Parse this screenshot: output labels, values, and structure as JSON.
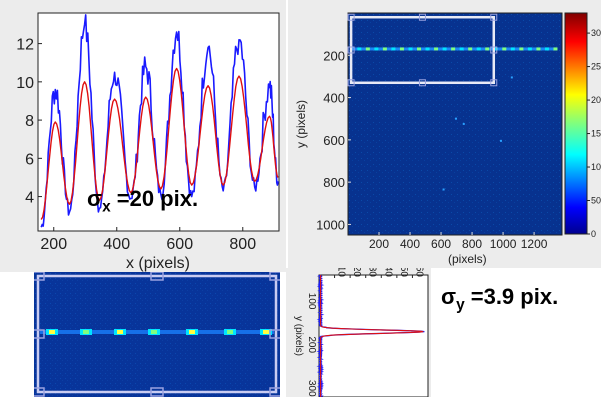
{
  "colors": {
    "blue_series": "#1a1aff",
    "red_series": "#e01010",
    "jet_bg": "#062a86",
    "roi_box": "#e8eaf6",
    "panel_bg": "#ececec"
  },
  "labels": {
    "sigma_x_symbol": "σ",
    "sigma_x_sub": "x",
    "sigma_x_value": " =20 pix.",
    "sigma_y_symbol": "σ",
    "sigma_y_sub": "y",
    "sigma_y_value": " =3.9 pix."
  },
  "chart_data": [
    {
      "type": "line",
      "xlabel": "x   (pixels)",
      "ylabel": "",
      "xlim": [
        150,
        915
      ],
      "ylim": [
        2.2,
        13.6
      ],
      "x_ticks": [
        "200",
        "400",
        "600",
        "800"
      ],
      "y_ticks": [
        "4",
        "6",
        "8",
        "10",
        "12"
      ],
      "x_tick_values": [
        200,
        400,
        600,
        800
      ],
      "y_tick_values": [
        4,
        6,
        8,
        10,
        12
      ],
      "fit_peaks": [
        {
          "x": 160,
          "y": 2.8
        },
        {
          "x": 205,
          "y": 7.9
        },
        {
          "x": 250,
          "y": 3.6
        },
        {
          "x": 298,
          "y": 10.0
        },
        {
          "x": 345,
          "y": 3.8
        },
        {
          "x": 393,
          "y": 9.1
        },
        {
          "x": 445,
          "y": 4.2
        },
        {
          "x": 492,
          "y": 9.2
        },
        {
          "x": 540,
          "y": 4.4
        },
        {
          "x": 590,
          "y": 10.7
        },
        {
          "x": 638,
          "y": 4.6
        },
        {
          "x": 690,
          "y": 9.8
        },
        {
          "x": 738,
          "y": 4.6
        },
        {
          "x": 788,
          "y": 10.3
        },
        {
          "x": 838,
          "y": 4.8
        },
        {
          "x": 885,
          "y": 8.2
        },
        {
          "x": 912,
          "y": 5.0
        }
      ],
      "raw_peaks": [
        {
          "x": 160,
          "y": 2.4
        },
        {
          "x": 205,
          "y": 9.6
        },
        {
          "x": 250,
          "y": 3.2
        },
        {
          "x": 298,
          "y": 13.0
        },
        {
          "x": 345,
          "y": 3.4
        },
        {
          "x": 393,
          "y": 10.5
        },
        {
          "x": 445,
          "y": 3.9
        },
        {
          "x": 492,
          "y": 10.8
        },
        {
          "x": 540,
          "y": 4.1
        },
        {
          "x": 590,
          "y": 12.6
        },
        {
          "x": 638,
          "y": 4.0
        },
        {
          "x": 690,
          "y": 11.8
        },
        {
          "x": 738,
          "y": 4.3
        },
        {
          "x": 788,
          "y": 12.2
        },
        {
          "x": 838,
          "y": 4.5
        },
        {
          "x": 885,
          "y": 9.7
        },
        {
          "x": 912,
          "y": 4.8
        }
      ]
    },
    {
      "type": "heatmap",
      "xlabel": "(pixels)",
      "ylabel": "y   (pixels)",
      "xlim": [
        0,
        1380
      ],
      "ylim": [
        0,
        1050
      ],
      "x_ticks": [
        "200",
        "400",
        "600",
        "800",
        "1000",
        "1200"
      ],
      "y_ticks": [
        "200",
        "400",
        "600",
        "800",
        "1000"
      ],
      "x_tick_values": [
        200,
        400,
        600,
        800,
        1000,
        1200
      ],
      "y_tick_values": [
        200,
        400,
        600,
        800,
        1000
      ],
      "colorbar_ticks": [
        "300",
        "250",
        "200",
        "150",
        "100",
        "50",
        "0"
      ],
      "colorbar_tick_values": [
        300,
        250,
        200,
        150,
        100,
        50,
        0
      ],
      "colorbar_range": [
        0,
        330
      ],
      "streak_y": 170,
      "roi": {
        "x0": 20,
        "x1": 940,
        "y0": 20,
        "y1": 330
      }
    },
    {
      "type": "heatmap",
      "streak_rows": [
        "1",
        "2",
        "3",
        "4",
        "5"
      ]
    },
    {
      "type": "line",
      "ylabel": "y   (pixels)",
      "xlim": [
        0,
        70
      ],
      "ylim": [
        0,
        320
      ],
      "x_ticks": [
        "10",
        "20",
        "30",
        "40",
        "50",
        "60"
      ],
      "y_ticks": [
        "100",
        "200",
        "300"
      ],
      "x_tick_values": [
        10,
        20,
        30,
        40,
        50,
        60
      ],
      "y_tick_values": [
        100,
        200,
        300
      ],
      "profile_center_y": 170,
      "profile_sigma": 3.9,
      "profile_peak": 66,
      "profile_baseline": 1
    }
  ]
}
